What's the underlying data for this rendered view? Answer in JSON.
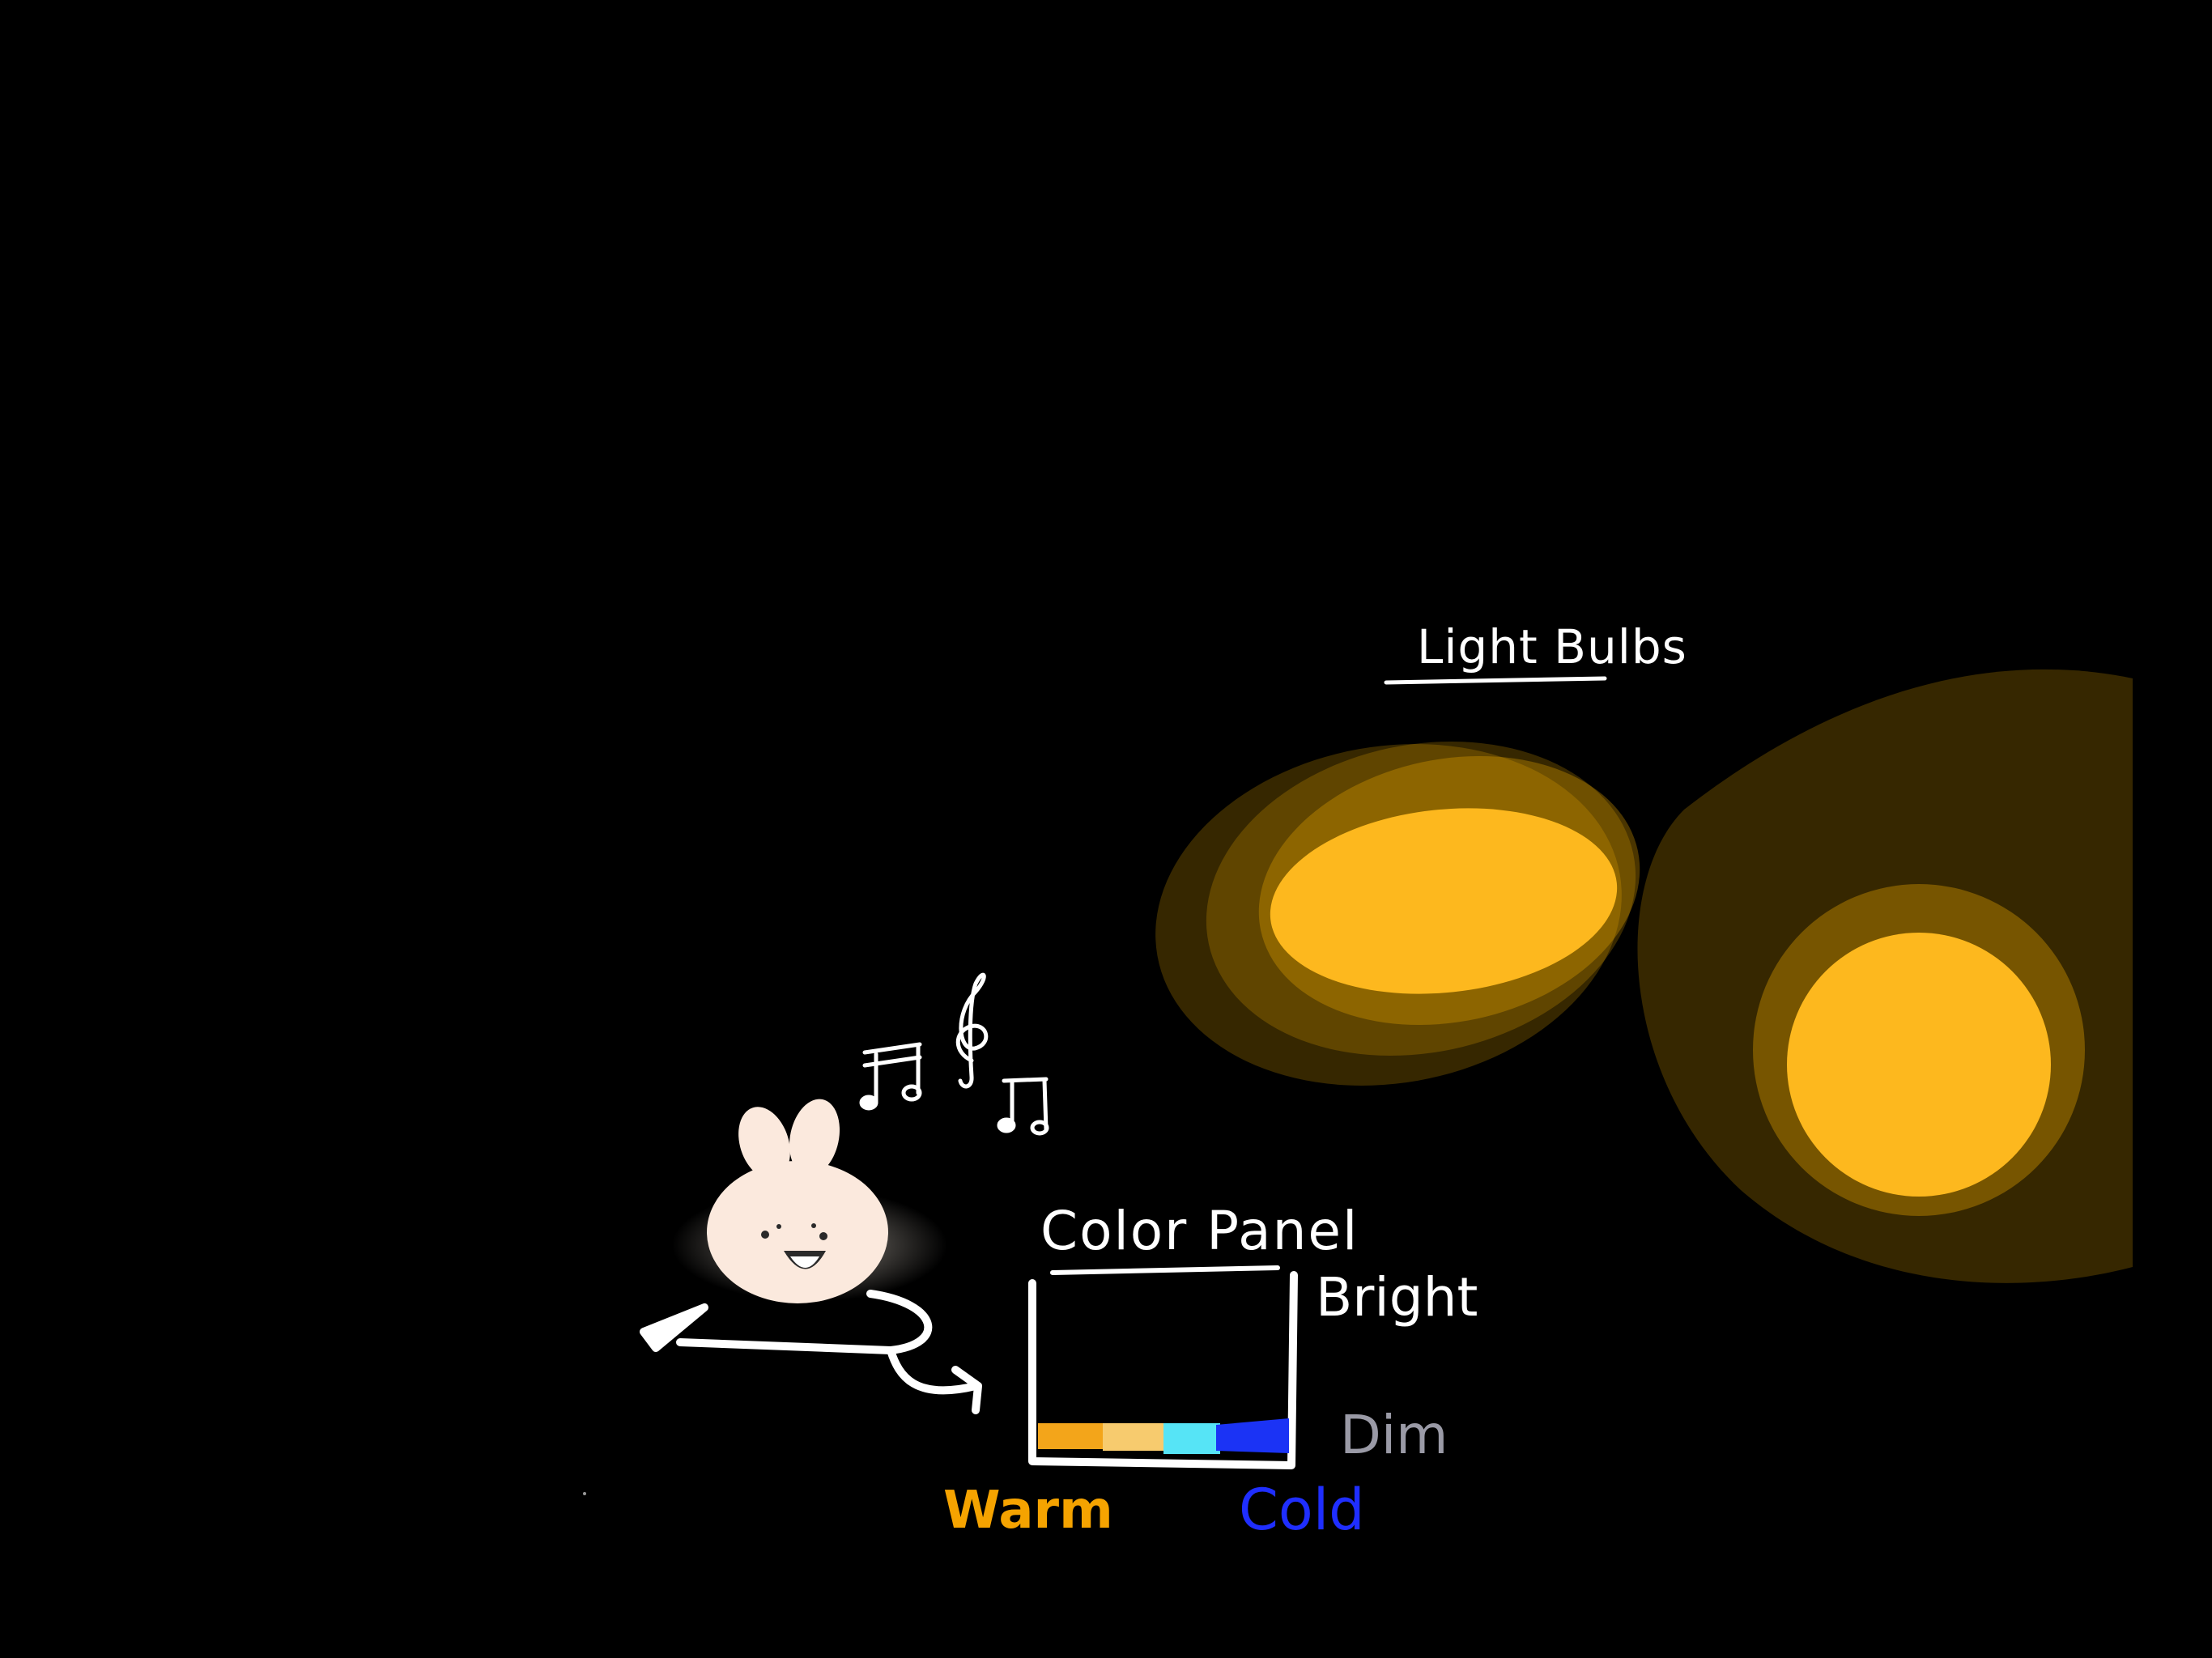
{
  "canvas": {
    "background": "#000000"
  },
  "light_bulbs": {
    "title": "Light Bulbs",
    "bulb_color": "#fdb81e",
    "glow_color": "#f5b000",
    "items": [
      {
        "name": "bulb-left"
      },
      {
        "name": "bulb-right"
      }
    ]
  },
  "color_panel": {
    "title": "Color Panel",
    "bright_label": "Bright",
    "dim_label": "Dim",
    "warm_label": "Warm",
    "cold_label": "Cold",
    "swatches": [
      {
        "name": "warm-orange",
        "color": "#f3a51a"
      },
      {
        "name": "light-yellow",
        "color": "#f7cb6e"
      },
      {
        "name": "cyan",
        "color": "#56e4f6"
      },
      {
        "name": "blue",
        "color": "#1b33f5"
      }
    ],
    "colors": {
      "warm": "#f5a300",
      "cold": "#1f2eff",
      "dim": "#9a9aa6",
      "stroke": "#ffffff"
    }
  },
  "character": {
    "name": "bunny",
    "fill": "#fbe9dd"
  },
  "music_notes": {
    "count": 3,
    "icons": [
      "beamed-notes-icon",
      "treble-clef-icon",
      "beamed-notes-icon"
    ]
  }
}
